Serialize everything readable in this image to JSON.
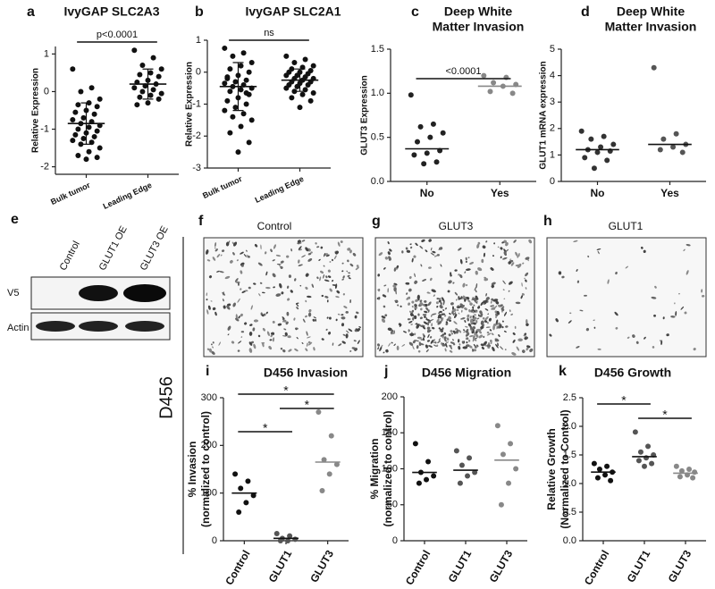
{
  "chart_data": [
    {
      "type": "dot",
      "label": "a",
      "title": [
        "IvyGAP SLC2A3"
      ],
      "ylabel": [
        "Relative Expression"
      ],
      "categories": [
        "Bulk tumor",
        "Leading Edge"
      ],
      "colors": [
        "#111111",
        "#111111"
      ],
      "points": [
        [
          0.6,
          0.1,
          0.0,
          -0.2,
          -0.3,
          -0.35,
          -0.4,
          -0.5,
          -0.55,
          -0.6,
          -0.7,
          -0.75,
          -0.8,
          -0.85,
          -0.9,
          -0.95,
          -1.0,
          -1.05,
          -1.1,
          -1.15,
          -1.2,
          -1.25,
          -1.3,
          -1.35,
          -1.4,
          -1.5,
          -1.6,
          -1.7,
          -1.75,
          -1.8
        ],
        [
          1.1,
          0.9,
          0.7,
          0.6,
          0.5,
          0.45,
          0.4,
          0.3,
          0.25,
          0.2,
          0.15,
          0.1,
          0.05,
          0.0,
          -0.05,
          -0.1,
          -0.15,
          -0.2,
          -0.3,
          -0.35
        ]
      ],
      "centers": [
        -0.85,
        0.2
      ],
      "errors": [
        0.55,
        0.4
      ],
      "ylim": [
        -2.2,
        1.2
      ],
      "yticks": [
        -2,
        -1,
        0,
        1
      ],
      "annotations": [
        "p<0.0001"
      ]
    },
    {
      "type": "dot",
      "label": "b",
      "title": [
        "IvyGAP SLC2A1"
      ],
      "ylabel": [
        "Relative Expression"
      ],
      "categories": [
        "Bulk tumor",
        "Leading Edge"
      ],
      "colors": [
        "#111111",
        "#111111"
      ],
      "points": [
        [
          0.75,
          0.6,
          0.5,
          0.3,
          0.2,
          0.1,
          0.0,
          -0.1,
          -0.2,
          -0.25,
          -0.3,
          -0.35,
          -0.4,
          -0.45,
          -0.5,
          -0.55,
          -0.6,
          -0.7,
          -0.8,
          -0.9,
          -1.0,
          -1.1,
          -1.2,
          -1.3,
          -1.4,
          -1.5,
          -1.7,
          -1.9,
          -2.2,
          -2.5,
          -0.15,
          -0.65
        ],
        [
          0.5,
          0.4,
          0.3,
          0.2,
          0.15,
          0.1,
          0.05,
          0.0,
          0.0,
          -0.05,
          -0.1,
          -0.1,
          -0.15,
          -0.2,
          -0.2,
          -0.25,
          -0.3,
          -0.3,
          -0.35,
          -0.4,
          -0.4,
          -0.45,
          -0.5,
          -0.55,
          -0.6,
          -0.65,
          -0.7,
          -0.8,
          -0.9,
          -1.1
        ]
      ],
      "centers": [
        -0.45,
        -0.25
      ],
      "errors": [
        0.75,
        0.35
      ],
      "ylim": [
        -3,
        1
      ],
      "yticks": [
        -3,
        -2,
        -1,
        0,
        1
      ],
      "annotations": [
        "ns"
      ]
    },
    {
      "type": "dot",
      "label": "c",
      "title": [
        "Deep White",
        "Matter Invasion"
      ],
      "ylabel": [
        "GLUT3 Expression"
      ],
      "categories": [
        "No",
        "Yes"
      ],
      "colors": [
        "#222222",
        "#888888"
      ],
      "points": [
        [
          0.98,
          0.65,
          0.62,
          0.55,
          0.5,
          0.45,
          0.35,
          0.32,
          0.3,
          0.22,
          0.2
        ],
        [
          1.2,
          1.18,
          1.12,
          1.1,
          1.08,
          1.02,
          1.0
        ]
      ],
      "centers": [
        0.37,
        1.08
      ],
      "ylim": [
        0,
        1.5
      ],
      "yticks": [
        {
          "value": 0,
          "label": "0.0"
        },
        {
          "value": 0.5,
          "label": "0.5"
        },
        {
          "value": 1,
          "label": "1.0"
        },
        {
          "value": 1.5,
          "label": "1.5"
        }
      ],
      "annotations": [
        "<0.0001"
      ]
    },
    {
      "type": "dot",
      "label": "d",
      "title": [
        "Deep White",
        "Matter Invasion"
      ],
      "ylabel": [
        "GLUT1 mRNA expression"
      ],
      "categories": [
        "No",
        "Yes"
      ],
      "colors": [
        "#333333",
        "#555555"
      ],
      "points": [
        [
          1.9,
          1.7,
          1.6,
          1.4,
          1.3,
          1.2,
          1.15,
          1.1,
          0.9,
          0.8,
          0.5
        ],
        [
          4.3,
          1.8,
          1.6,
          1.4,
          1.3,
          1.2,
          1.1
        ]
      ],
      "centers": [
        1.2,
        1.4
      ],
      "ylim": [
        0,
        5
      ],
      "yticks": [
        0,
        1,
        2,
        3,
        4,
        5
      ],
      "annotations": []
    },
    {
      "type": "dot",
      "label": "i",
      "title": [
        "D456 Invasion"
      ],
      "ylabel": [
        "% Invasion",
        "(normalized to control)"
      ],
      "categories": [
        "Control",
        "GLUT1",
        "GLUT3"
      ],
      "colors": [
        "#111111",
        "#555555",
        "#888888"
      ],
      "points": [
        [
          140,
          125,
          110,
          95,
          80,
          60
        ],
        [
          15,
          10,
          5,
          3,
          0,
          0
        ],
        [
          270,
          220,
          170,
          160,
          140,
          105
        ]
      ],
      "centers": [
        100,
        5,
        165
      ],
      "ylim": [
        0,
        300
      ],
      "yticks": [
        0,
        100,
        200,
        300
      ],
      "annotations": [
        "*",
        "*",
        "*"
      ]
    },
    {
      "type": "dot",
      "label": "j",
      "title": [
        "D456 Migration"
      ],
      "ylabel": [
        "% Migration",
        "(normalized to control)"
      ],
      "categories": [
        "Control",
        "GLUT1",
        "GLUT3"
      ],
      "colors": [
        "#111111",
        "#555555",
        "#888888"
      ],
      "points": [
        [
          135,
          110,
          95,
          90,
          85,
          80
        ],
        [
          125,
          115,
          105,
          95,
          90,
          80
        ],
        [
          160,
          135,
          120,
          100,
          80,
          50
        ]
      ],
      "centers": [
        95,
        98,
        112
      ],
      "ylim": [
        0,
        200
      ],
      "yticks": [
        0,
        50,
        100,
        150,
        200
      ],
      "annotations": []
    },
    {
      "type": "dot",
      "label": "k",
      "title": [
        "D456 Growth"
      ],
      "ylabel": [
        "Relative Growth",
        "(Normalized to Control)"
      ],
      "categories": [
        "Control",
        "GLUT1",
        "GLUT3"
      ],
      "colors": [
        "#111111",
        "#555555",
        "#888888"
      ],
      "points": [
        [
          1.35,
          1.3,
          1.25,
          1.2,
          1.15,
          1.1,
          1.05
        ],
        [
          1.9,
          1.65,
          1.55,
          1.5,
          1.45,
          1.4,
          1.35,
          1.3
        ],
        [
          1.3,
          1.25,
          1.22,
          1.2,
          1.15,
          1.12,
          1.1
        ]
      ],
      "centers": [
        1.2,
        1.47,
        1.18
      ],
      "ylim": [
        0,
        2.5
      ],
      "yticks": [
        {
          "value": 0,
          "label": "0.0"
        },
        {
          "value": 0.5,
          "label": "0.5"
        },
        {
          "value": 1,
          "label": "1.0"
        },
        {
          "value": 1.5,
          "label": "1.5"
        },
        {
          "value": 2,
          "label": "2.0"
        },
        {
          "value": 2.5,
          "label": "2.5"
        }
      ],
      "annotations": [
        "*",
        "*"
      ]
    }
  ],
  "blot": {
    "label": "e",
    "lanes": [
      "Control",
      "GLUT1 OE",
      "GLUT3 OE"
    ],
    "rows": [
      "V5",
      "Actin"
    ]
  },
  "images": [
    {
      "label": "f",
      "title": "Control"
    },
    {
      "label": "g",
      "title": "GLUT3"
    },
    {
      "label": "h",
      "title": "GLUT1"
    }
  ],
  "cell_line": "D456"
}
